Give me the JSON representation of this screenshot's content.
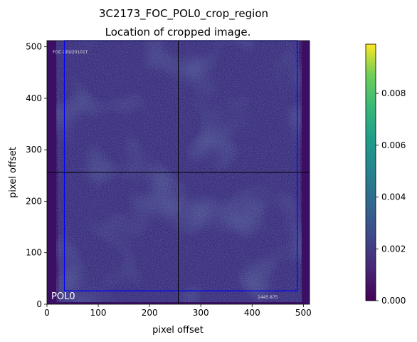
{
  "figure": {
    "title": "3C2173_FOC_POL0_crop_region",
    "subtitle": "Location of cropped image."
  },
  "overlay": {
    "header_text": "FOC:X0U20101T",
    "footer_value": "1445.875",
    "filter_label": "POL0"
  },
  "chart_data": [
    {
      "type": "heatmap",
      "title": "3C2173_FOC_POL0_crop_region",
      "subtitle": "Location of cropped image.",
      "xlabel": "pixel offset",
      "ylabel": "pixel offset",
      "xlim": [
        0,
        512
      ],
      "ylim": [
        0,
        512
      ],
      "xticks": [
        0,
        100,
        200,
        300,
        400,
        500
      ],
      "yticks": [
        0,
        100,
        200,
        300,
        400,
        500
      ],
      "colormap": "viridis",
      "crosshair": {
        "x": 256,
        "y": 256,
        "color": "#000000"
      },
      "crop_region": {
        "x0": 34,
        "y0": 26,
        "x1": 488,
        "y1": 512,
        "color": "#0000ff"
      },
      "grid": false
    },
    {
      "type": "colorbar",
      "colormap": "viridis",
      "range": [
        0,
        0.0099
      ],
      "ticks": [
        "0.000",
        "0.002",
        "0.004",
        "0.006",
        "0.008"
      ],
      "tick_values": [
        0,
        0.002,
        0.004,
        0.006,
        0.008
      ]
    }
  ]
}
